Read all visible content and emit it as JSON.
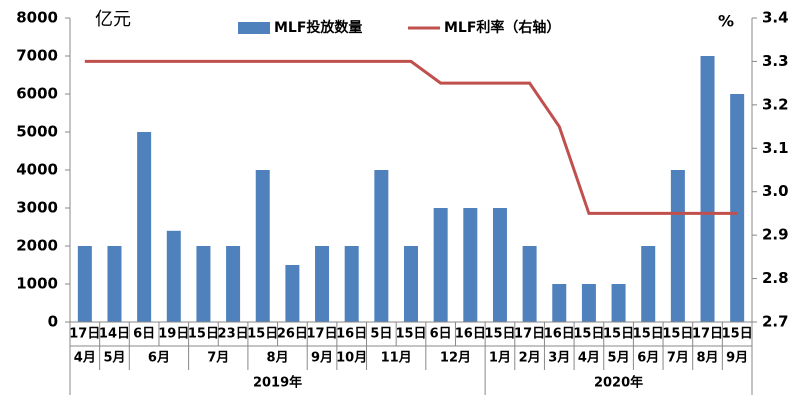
{
  "chart_data": {
    "type": "bar_line",
    "y_unit": "亿元",
    "y2_unit": "%",
    "years": [
      {
        "label": "2019年",
        "months": [
          {
            "label": "4月",
            "days": [
              "17日"
            ]
          },
          {
            "label": "5月",
            "days": [
              "14日"
            ]
          },
          {
            "label": "6月",
            "days": [
              "6日",
              "19日"
            ]
          },
          {
            "label": "7月",
            "days": [
              "15日",
              "23日"
            ]
          },
          {
            "label": "8月",
            "days": [
              "15日",
              "26日"
            ]
          },
          {
            "label": "9月",
            "days": [
              "17日"
            ]
          },
          {
            "label": "10月",
            "days": [
              "16日"
            ]
          },
          {
            "label": "11月",
            "days": [
              "5日",
              "15日"
            ]
          },
          {
            "label": "12月",
            "days": [
              "6日",
              "16日"
            ]
          }
        ]
      },
      {
        "label": "2020年",
        "months": [
          {
            "label": "1月",
            "days": [
              "15日"
            ]
          },
          {
            "label": "2月",
            "days": [
              "17日"
            ]
          },
          {
            "label": "3月",
            "days": [
              "16日"
            ]
          },
          {
            "label": "4月",
            "days": [
              "15日"
            ]
          },
          {
            "label": "5月",
            "days": [
              "15日"
            ]
          },
          {
            "label": "6月",
            "days": [
              "15日"
            ]
          },
          {
            "label": "7月",
            "days": [
              "15日"
            ]
          },
          {
            "label": "8月",
            "days": [
              "17日"
            ]
          },
          {
            "label": "9月",
            "days": [
              "15日"
            ]
          }
        ]
      }
    ],
    "series": [
      {
        "name": "MLF投放数量",
        "type": "bar",
        "color": "#4f81bd",
        "values": [
          2000,
          2000,
          5000,
          2400,
          2000,
          2000,
          4000,
          1500,
          2000,
          2000,
          4000,
          2000,
          3000,
          3000,
          3000,
          2000,
          1000,
          1000,
          1000,
          2000,
          4000,
          7000,
          6000
        ]
      },
      {
        "name": "MLF利率（右轴）",
        "type": "line",
        "axis": "y2",
        "color": "#c0504d",
        "values": [
          3.3,
          3.3,
          3.3,
          3.3,
          3.3,
          3.3,
          3.3,
          3.3,
          3.3,
          3.3,
          3.3,
          3.3,
          3.25,
          3.25,
          3.25,
          3.25,
          3.15,
          2.95,
          2.95,
          2.95,
          2.95,
          2.95,
          2.95
        ]
      }
    ],
    "ylim": [
      0,
      8000
    ],
    "yticks": [
      0,
      1000,
      2000,
      3000,
      4000,
      5000,
      6000,
      7000,
      8000
    ],
    "y2lim": [
      2.7,
      3.4
    ],
    "y2ticks": [
      2.7,
      2.8,
      2.9,
      {
        "value": 3,
        "label": "3.0"
      },
      3.1,
      3.2,
      3.3,
      3.4
    ]
  }
}
